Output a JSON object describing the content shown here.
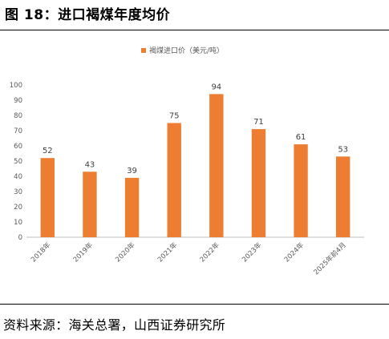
{
  "figure": {
    "title": "图 18：进口褐煤年度均价",
    "source": "资料来源：海关总署，山西证券研究所"
  },
  "chart_data": {
    "type": "bar",
    "categories": [
      "2018年",
      "2019年",
      "2020年",
      "2021年",
      "2022年",
      "2023年",
      "2024年",
      "2025年前4月"
    ],
    "series": [
      {
        "name": "褐煤进口价（美元/吨）",
        "values": [
          52,
          43,
          39,
          75,
          94,
          71,
          61,
          53
        ],
        "color": "#ED7D31"
      }
    ],
    "yticks": [
      "0",
      "10",
      "20",
      "30",
      "40",
      "50",
      "60",
      "70",
      "80",
      "90",
      "100"
    ],
    "ylim": [
      0,
      100
    ],
    "grid": false,
    "legend_position": "top-center",
    "axis_color": "#BFBFBF",
    "label_color": "#595959"
  }
}
